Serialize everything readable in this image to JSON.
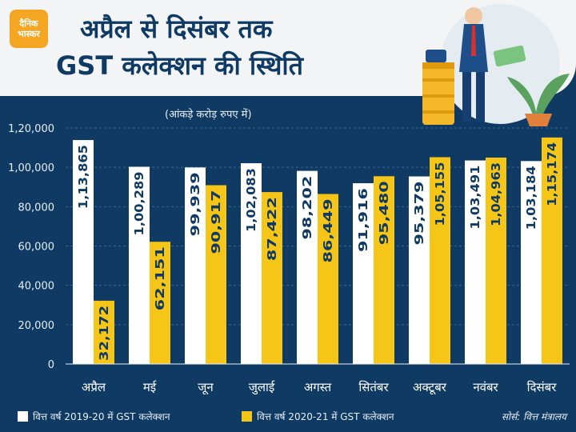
{
  "brand": {
    "line1": "दैनिक",
    "line2": "भास्कर"
  },
  "title": {
    "line1": "अप्रैल से दिसंबर तक",
    "line2": "GST कलेक्शन की स्थिति"
  },
  "unit_note": "(आंकड़े करोड़ रुपए में)",
  "colors": {
    "series_2019": "#ffffff",
    "series_2020": "#f5c518",
    "background": "#0f3a63"
  },
  "legend": {
    "series_2019": "वित्त वर्ष 2019-20 में GST कलेक्शन",
    "series_2020": "वित्त वर्ष 2020-21 में GST कलेक्शन"
  },
  "source": "सोर्स: वित्त मंत्रालय",
  "chart_data": {
    "type": "bar",
    "categories": [
      "अप्रैल",
      "मई",
      "जून",
      "जुलाई",
      "अगस्त",
      "सितंबर",
      "अक्टूबर",
      "नवंबर",
      "दिसंबर"
    ],
    "series": [
      {
        "name": "वित्त वर्ष 2019-20 में GST कलेक्शन",
        "values": [
          113865,
          100289,
          99939,
          102083,
          98202,
          91916,
          95379,
          103491,
          103184
        ],
        "labels": [
          "1,13,865",
          "1,00,289",
          "99,939",
          "1,02,083",
          "98,202",
          "91,916",
          "95,379",
          "1,03,491",
          "1,03,184"
        ]
      },
      {
        "name": "वित्त वर्ष 2020-21 में GST कलेक्शन",
        "values": [
          32172,
          62151,
          90917,
          87422,
          86449,
          95480,
          105155,
          104963,
          115174
        ],
        "labels": [
          "32,172",
          "62,151",
          "90,917",
          "87,422",
          "86,449",
          "95,480",
          "1,05,155",
          "1,04,963",
          "1,15,174"
        ]
      }
    ],
    "ylim": [
      0,
      120000
    ],
    "yticks": [
      0,
      20000,
      40000,
      60000,
      80000,
      100000,
      120000
    ],
    "ytick_labels": [
      "0",
      "20,000",
      "40,000",
      "60,000",
      "80,000",
      "1,00,000",
      "1,20,000"
    ],
    "grid": true
  }
}
